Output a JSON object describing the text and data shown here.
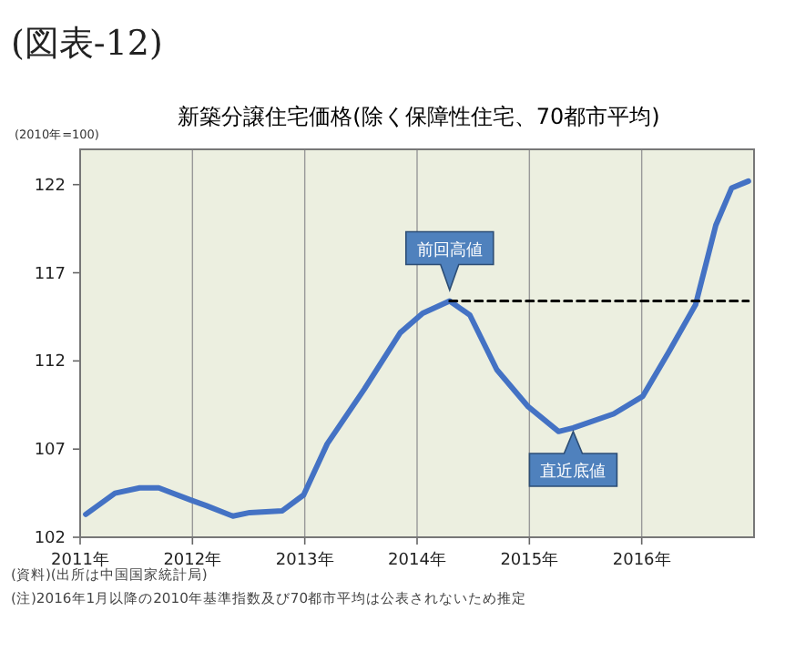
{
  "chart_data": {
    "type": "line",
    "title": "新築分譲住宅価格(除く保障性住宅、70都市平均)",
    "ylabel": "(2010年=100)",
    "xlim": [
      2011,
      2017
    ],
    "ylim": [
      102,
      124
    ],
    "xticks": [
      {
        "value": 2011,
        "label": "2011年"
      },
      {
        "value": 2012,
        "label": "2012年"
      },
      {
        "value": 2013,
        "label": "2013年"
      },
      {
        "value": 2014,
        "label": "2014年"
      },
      {
        "value": 2015,
        "label": "2015年"
      },
      {
        "value": 2016,
        "label": "2016年"
      }
    ],
    "yticks": [
      102,
      107,
      112,
      117,
      122
    ],
    "grid": "x",
    "series": [
      {
        "color": "#4472c4",
        "x": [
          2011.05,
          2011.31,
          2011.53,
          2011.7,
          2011.99,
          2012.12,
          2012.36,
          2012.51,
          2012.8,
          2012.99,
          2013.2,
          2013.53,
          2013.85,
          2014.05,
          2014.29,
          2014.47,
          2014.71,
          2014.99,
          2015.26,
          2015.39,
          2015.75,
          2016.01,
          2016.24,
          2016.48,
          2016.66,
          2016.8,
          2016.95
        ],
        "values": [
          103.3,
          104.5,
          104.8,
          104.8,
          104.1,
          103.8,
          103.2,
          103.4,
          103.5,
          104.4,
          107.3,
          110.4,
          113.6,
          114.7,
          115.4,
          114.6,
          111.5,
          109.4,
          108.0,
          108.2,
          109.0,
          110.0,
          112.5,
          115.2,
          119.7,
          121.8,
          122.2
        ]
      },
      {
        "color": "#000000",
        "line_style": "dashed",
        "x": [
          2014.29,
          2016.95
        ],
        "values": [
          115.4,
          115.4
        ]
      }
    ],
    "annotations": [
      "(図表-12)",
      {
        "text": "前回高値",
        "x": 2014.29,
        "y": 115.4
      },
      {
        "text": "直近底値",
        "x": 2015.39,
        "y": 108.2
      },
      "(資料)(出所は中国国家統計局)",
      "(注)2016年1月以降の2010年基準指数及び70都市平均は公表されないため推定"
    ]
  }
}
